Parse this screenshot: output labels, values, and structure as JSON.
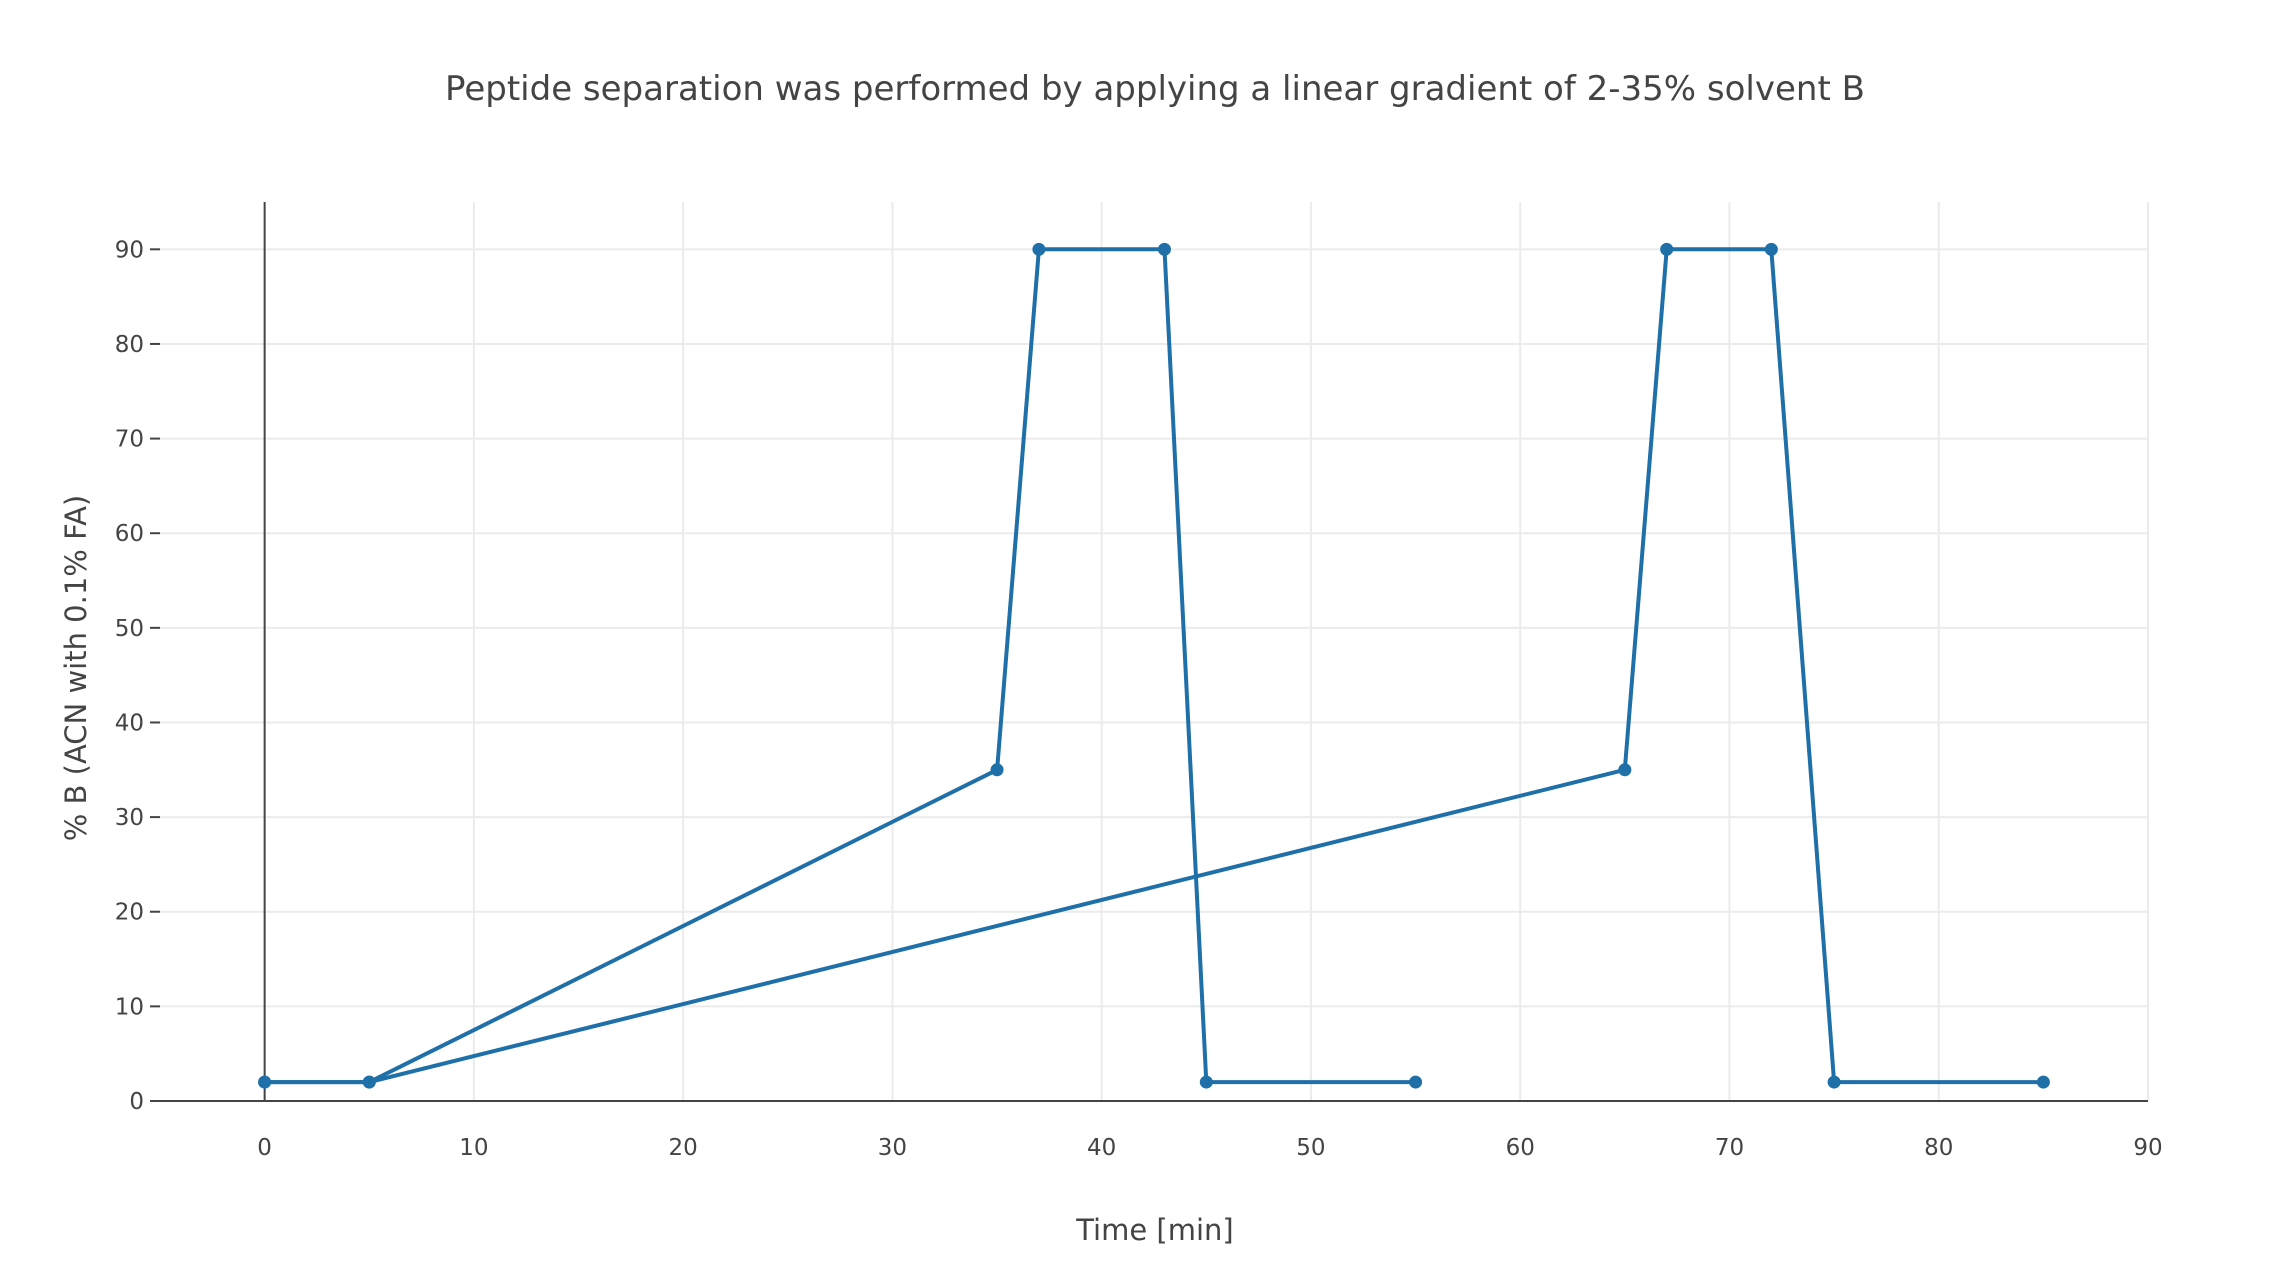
{
  "chart_data": {
    "type": "line",
    "title": "Peptide separation was performed by applying a linear gradient of 2-35% solvent B",
    "xlabel": "Time [min]",
    "ylabel": "% B (ACN with 0.1% FA)",
    "xlim": [
      -5,
      90
    ],
    "ylim": [
      0,
      95
    ],
    "xticks": [
      0,
      10,
      20,
      30,
      40,
      50,
      60,
      70,
      80,
      90
    ],
    "yticks": [
      0,
      10,
      20,
      30,
      40,
      50,
      60,
      70,
      80,
      90
    ],
    "grid": true,
    "legend": "none",
    "series": [
      {
        "color": "#1f6fa8",
        "x": [
          0,
          5,
          35,
          37,
          43,
          45,
          55
        ],
        "y": [
          2,
          2,
          35,
          90,
          90,
          2,
          2
        ]
      },
      {
        "color": "#1f6fa8",
        "x": [
          0,
          5,
          65,
          67,
          72,
          75,
          85
        ],
        "y": [
          2,
          2,
          35,
          90,
          90,
          2,
          2
        ]
      }
    ]
  }
}
